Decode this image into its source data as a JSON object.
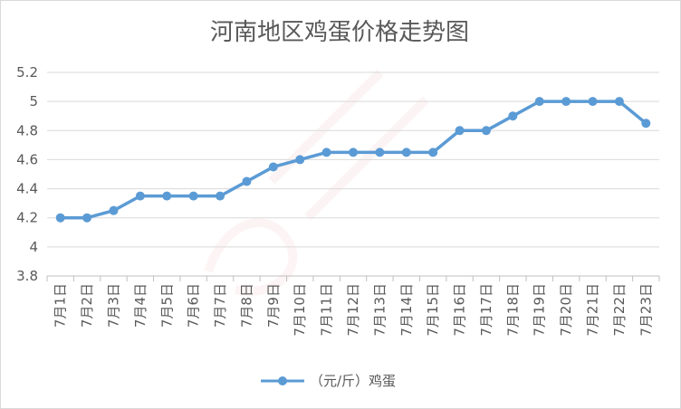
{
  "chart_data": {
    "type": "line",
    "title": "河南地区鸡蛋价格走势图",
    "categories": [
      "7月1日",
      "7月2日",
      "7月3日",
      "7月4日",
      "7月5日",
      "7月6日",
      "7月7日",
      "7月8日",
      "7月9日",
      "7月10日",
      "7月11日",
      "7月12日",
      "7月13日",
      "7月14日",
      "7月15日",
      "7月16日",
      "7月17日",
      "7月18日",
      "7月19日",
      "7月20日",
      "7月21日",
      "7月22日",
      "7月23日"
    ],
    "series": [
      {
        "name": "（元/斤）鸡蛋",
        "color": "#5b9bd5",
        "values": [
          4.2,
          4.2,
          4.25,
          4.35,
          4.35,
          4.35,
          4.35,
          4.45,
          4.55,
          4.6,
          4.65,
          4.65,
          4.65,
          4.65,
          4.65,
          4.8,
          4.8,
          4.9,
          5.0,
          5.0,
          5.0,
          5.0,
          4.85
        ]
      }
    ],
    "ylim": [
      3.8,
      5.2
    ],
    "yticks": [
      3.8,
      4,
      4.2,
      4.4,
      4.6,
      4.8,
      5,
      5.2
    ],
    "ytick_labels": [
      "3.8",
      "4",
      "4.2",
      "4.4",
      "4.6",
      "4.8",
      "5",
      "5.2"
    ],
    "grid": true,
    "legend_position": "bottom"
  }
}
